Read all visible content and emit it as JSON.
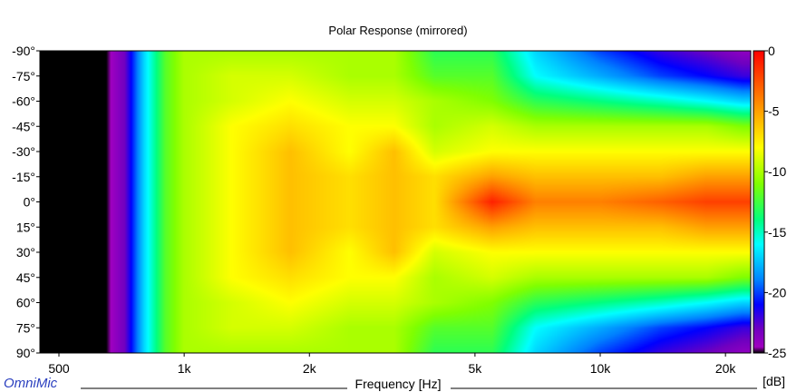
{
  "chart_data": {
    "type": "heatmap",
    "title": "Polar Response (mirrored)",
    "xlabel": "Frequency [Hz]",
    "ylabel": "",
    "x_scale": "log",
    "xlim": [
      450,
      23000
    ],
    "ylim": [
      -90,
      90
    ],
    "x_ticks": [
      {
        "value": 500,
        "label": "500"
      },
      {
        "value": 1000,
        "label": "1k"
      },
      {
        "value": 2000,
        "label": "2k"
      },
      {
        "value": 5000,
        "label": "5k"
      },
      {
        "value": 10000,
        "label": "10k"
      },
      {
        "value": 20000,
        "label": "20k"
      }
    ],
    "y_ticks": [
      {
        "value": -90,
        "label": "-90°"
      },
      {
        "value": -75,
        "label": "-75°"
      },
      {
        "value": -60,
        "label": "-60°"
      },
      {
        "value": -45,
        "label": "-45°"
      },
      {
        "value": -30,
        "label": "-30°"
      },
      {
        "value": -15,
        "label": "-15°"
      },
      {
        "value": 0,
        "label": "0°"
      },
      {
        "value": 15,
        "label": "15°"
      },
      {
        "value": 30,
        "label": "30°"
      },
      {
        "value": 45,
        "label": "45°"
      },
      {
        "value": 60,
        "label": "60°"
      },
      {
        "value": 75,
        "label": "75°"
      },
      {
        "value": 90,
        "label": "90°"
      }
    ],
    "colorbar": {
      "unit_label": "[dB]",
      "range": [
        -25,
        0
      ],
      "ticks": [
        {
          "value": 0,
          "label": "0"
        },
        {
          "value": -5,
          "label": "-5"
        },
        {
          "value": -10,
          "label": "-10"
        },
        {
          "value": -15,
          "label": "-15"
        },
        {
          "value": -20,
          "label": "-20"
        },
        {
          "value": -25,
          "label": "-25"
        }
      ],
      "colors": [
        {
          "db": 0,
          "color": "#ff0000"
        },
        {
          "db": -5,
          "color": "#ffa000"
        },
        {
          "db": -8,
          "color": "#ffff00"
        },
        {
          "db": -11,
          "color": "#80ff00"
        },
        {
          "db": -14,
          "color": "#00ff7f"
        },
        {
          "db": -16,
          "color": "#00ffff"
        },
        {
          "db": -19,
          "color": "#0080ff"
        },
        {
          "db": -21,
          "color": "#0000ff"
        },
        {
          "db": -23,
          "color": "#7000c0"
        },
        {
          "db": -24.5,
          "color": "#a000c0"
        },
        {
          "db": -25,
          "color": "#000000"
        }
      ]
    },
    "grid": false,
    "values_estimated": {
      "freqs_hz": [
        500,
        650,
        720,
        800,
        900,
        1000,
        1300,
        1800,
        2500,
        3200,
        4000,
        5500,
        7000,
        10000,
        14000,
        18000,
        22000
      ],
      "angles_deg": [
        0,
        15,
        30,
        45,
        60,
        75,
        90
      ],
      "db": [
        [
          -25,
          -25,
          -23,
          -17,
          -12,
          -10,
          -8,
          -6,
          -7,
          -6,
          -7,
          -1,
          -4,
          -4,
          -3,
          -2,
          -2
        ],
        [
          -25,
          -25,
          -23,
          -17,
          -12,
          -10,
          -8,
          -6,
          -7,
          -6,
          -7,
          -5,
          -6,
          -6,
          -6,
          -5,
          -5
        ],
        [
          -25,
          -25,
          -23,
          -17,
          -12,
          -10,
          -8,
          -6,
          -8,
          -6,
          -9,
          -8,
          -8,
          -8,
          -8,
          -8,
          -8
        ],
        [
          -25,
          -25,
          -23,
          -17,
          -12,
          -10,
          -8,
          -7,
          -8,
          -8,
          -10,
          -9,
          -10,
          -10,
          -10,
          -10,
          -11
        ],
        [
          -25,
          -25,
          -23,
          -17,
          -12,
          -10,
          -9,
          -8,
          -9,
          -9,
          -10,
          -11,
          -13,
          -14,
          -15,
          -16,
          -17
        ],
        [
          -25,
          -25,
          -23,
          -17,
          -12,
          -10,
          -9,
          -9,
          -10,
          -10,
          -12,
          -12,
          -16,
          -18,
          -20,
          -21,
          -22
        ],
        [
          -25,
          -25,
          -23,
          -17,
          -12,
          -10,
          -10,
          -10,
          -10,
          -10,
          -13,
          -13,
          -17,
          -20,
          -22,
          -23,
          -24
        ]
      ]
    }
  },
  "branding": {
    "watermark": "OmniMic"
  }
}
